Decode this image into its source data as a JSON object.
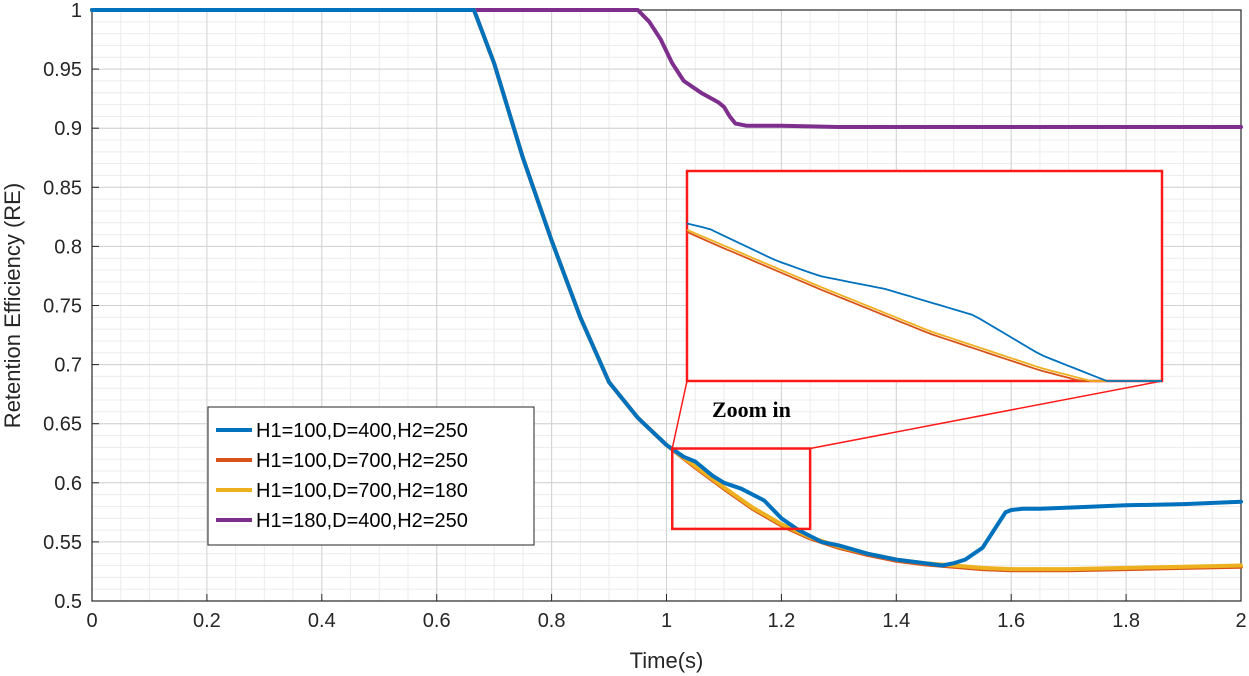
{
  "chart_data": {
    "type": "line",
    "title": "",
    "xlabel": "Time(s)",
    "ylabel": "Retention Efficiency (RE)",
    "xlim": [
      0,
      2
    ],
    "ylim": [
      0.5,
      1
    ],
    "grid": true,
    "minor_grid": true,
    "x_ticks": [
      0,
      0.2,
      0.4,
      0.6,
      0.8,
      1,
      1.2,
      1.4,
      1.6,
      1.8,
      2
    ],
    "x_tick_labels": [
      "0",
      "0.2",
      "0.4",
      "0.6",
      "0.8",
      "1",
      "1.2",
      "1.4",
      "1.6",
      "1.8",
      "2"
    ],
    "y_ticks": [
      0.5,
      0.55,
      0.6,
      0.65,
      0.7,
      0.75,
      0.8,
      0.85,
      0.9,
      0.95,
      1
    ],
    "y_tick_labels": [
      "0.5",
      "0.55",
      "0.6",
      "0.65",
      "0.7",
      "0.75",
      "0.8",
      "0.85",
      "0.9",
      "0.95",
      "1"
    ],
    "legend_position": "lower-left",
    "series": [
      {
        "name": "H1=100,D=400,H2=250",
        "color": "#0072BD",
        "x": [
          0,
          0.665,
          0.7,
          0.75,
          0.8,
          0.85,
          0.9,
          0.95,
          1.0,
          1.03,
          1.05,
          1.08,
          1.1,
          1.13,
          1.17,
          1.2,
          1.23,
          1.27,
          1.3,
          1.35,
          1.4,
          1.45,
          1.48,
          1.5,
          1.52,
          1.55,
          1.57,
          1.59,
          1.6,
          1.62,
          1.65,
          1.7,
          1.8,
          1.9,
          2.0
        ],
        "y": [
          1.0,
          1.0,
          0.955,
          0.875,
          0.805,
          0.74,
          0.685,
          0.655,
          0.632,
          0.622,
          0.618,
          0.606,
          0.6,
          0.595,
          0.585,
          0.57,
          0.56,
          0.55,
          0.547,
          0.54,
          0.535,
          0.532,
          0.53,
          0.532,
          0.535,
          0.545,
          0.56,
          0.575,
          0.577,
          0.578,
          0.578,
          0.579,
          0.581,
          0.582,
          0.584
        ]
      },
      {
        "name": "H1=100,D=700,H2=250",
        "color": "#D95319",
        "x": [
          0,
          0.665,
          0.7,
          0.75,
          0.8,
          0.85,
          0.9,
          0.95,
          1.0,
          1.05,
          1.1,
          1.15,
          1.2,
          1.25,
          1.3,
          1.35,
          1.4,
          1.45,
          1.5,
          1.55,
          1.6,
          1.7,
          1.8,
          1.9,
          2.0
        ],
        "y": [
          1.0,
          1.0,
          0.955,
          0.875,
          0.805,
          0.74,
          0.685,
          0.655,
          0.632,
          0.613,
          0.595,
          0.578,
          0.564,
          0.553,
          0.545,
          0.539,
          0.534,
          0.531,
          0.529,
          0.527,
          0.526,
          0.526,
          0.527,
          0.528,
          0.529
        ]
      },
      {
        "name": "H1=100,D=700,H2=180",
        "color": "#EDB120",
        "x": [
          0,
          0.665,
          0.7,
          0.75,
          0.8,
          0.85,
          0.9,
          0.95,
          1.0,
          1.05,
          1.1,
          1.15,
          1.2,
          1.25,
          1.3,
          1.35,
          1.4,
          1.45,
          1.5,
          1.55,
          1.6,
          1.7,
          1.8,
          1.9,
          2.0
        ],
        "y": [
          1.0,
          1.0,
          0.955,
          0.875,
          0.805,
          0.74,
          0.685,
          0.655,
          0.632,
          0.614,
          0.596,
          0.579,
          0.565,
          0.554,
          0.546,
          0.54,
          0.535,
          0.532,
          0.53,
          0.528,
          0.527,
          0.527,
          0.528,
          0.529,
          0.53
        ]
      },
      {
        "name": "H1=180,D=400,H2=250",
        "color": "#7E2F8E",
        "x": [
          0,
          0.95,
          0.97,
          0.99,
          1.01,
          1.03,
          1.06,
          1.09,
          1.1,
          1.11,
          1.12,
          1.14,
          1.2,
          1.3,
          1.5,
          1.7,
          1.9,
          2.0
        ],
        "y": [
          1.0,
          1.0,
          0.99,
          0.975,
          0.955,
          0.94,
          0.93,
          0.922,
          0.918,
          0.91,
          0.904,
          0.902,
          0.902,
          0.901,
          0.901,
          0.901,
          0.901,
          0.901
        ]
      }
    ],
    "annotations": [
      {
        "text": "Zoom in",
        "type": "zoom-inset",
        "source_region": {
          "x": [
            1.01,
            1.25
          ],
          "y": [
            0.561,
            0.629
          ]
        }
      }
    ]
  }
}
